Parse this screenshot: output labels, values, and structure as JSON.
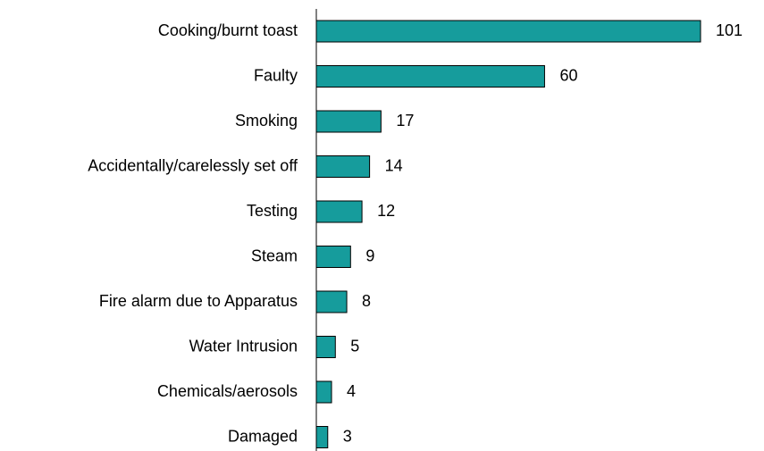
{
  "chart_data": {
    "type": "bar",
    "orientation": "horizontal",
    "categories": [
      "Cooking/burnt toast",
      "Faulty",
      "Smoking",
      "Accidentally/carelessly set off",
      "Testing",
      "Steam",
      "Fire alarm due to Apparatus",
      "Water Intrusion",
      "Chemicals/aerosols",
      "Damaged"
    ],
    "values": [
      101,
      60,
      17,
      14,
      12,
      9,
      8,
      5,
      4,
      3
    ],
    "color": "#169c9c"
  }
}
